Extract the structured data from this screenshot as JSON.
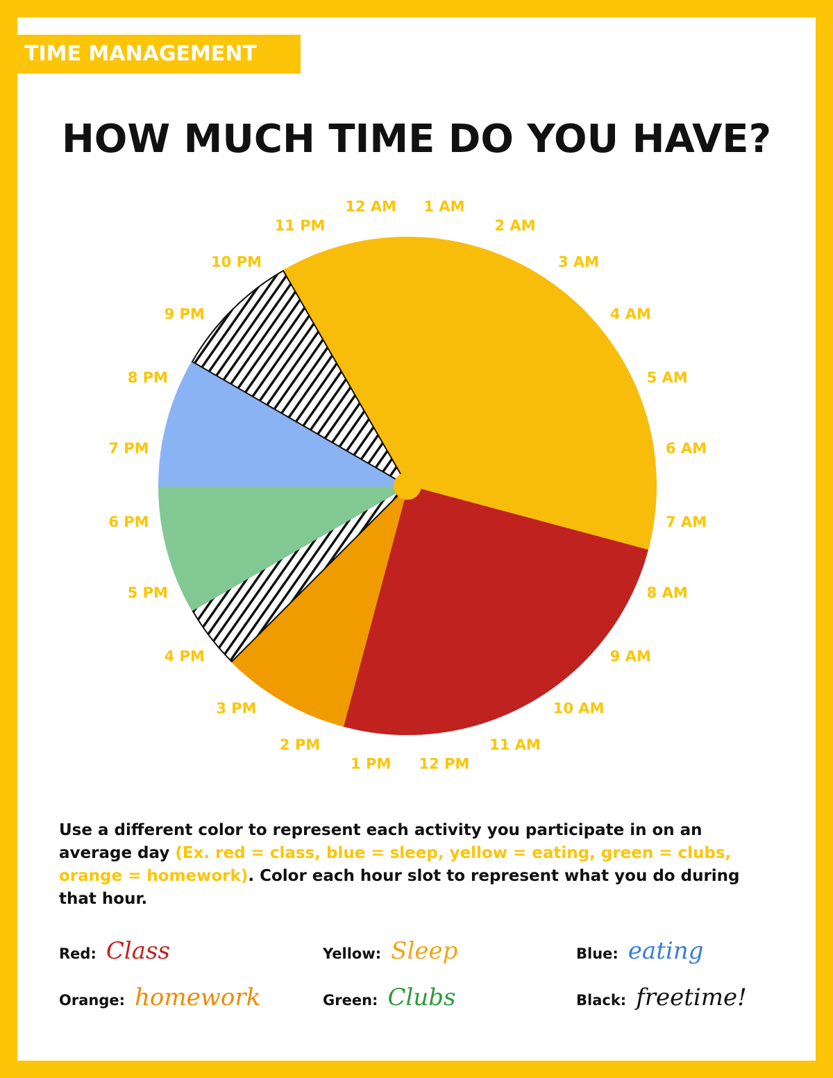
{
  "header": {
    "tag": "TIME MANAGEMENT",
    "title": "HOW MUCH TIME DO YOU HAVE?"
  },
  "chart_data": {
    "type": "pie",
    "values": [
      9,
      6,
      2,
      1,
      2,
      2,
      2
    ],
    "colors": [
      "#f8bd0a",
      "#c0221f",
      "#f09c00",
      "#111111",
      "#82c892",
      "#8ab3f4",
      "#111111"
    ],
    "hour_labels": [
      "12 AM",
      "1 AM",
      "2 AM",
      "3 AM",
      "4 AM",
      "5 AM",
      "6 AM",
      "7 AM",
      "8 AM",
      "9 AM",
      "10 AM",
      "11 AM",
      "12 PM",
      "1 PM",
      "2 PM",
      "3 PM",
      "4 PM",
      "5 PM",
      "6 PM",
      "7 PM",
      "8 PM",
      "9 PM",
      "10 PM",
      "11 PM"
    ]
  },
  "instructions": {
    "part1": "Use a different color to represent each activity you participate in on an average day ",
    "part2": "(Ex. red = class, blue = sleep, yellow = eating, green = clubs, orange = homework)",
    "part3": ". Color each hour slot to represent what you do during that hour."
  },
  "legend": [
    {
      "label": "Red:",
      "value": "Class",
      "color": "#c0221f"
    },
    {
      "label": "Yellow:",
      "value": "Sleep",
      "color": "#f3a419"
    },
    {
      "label": "Blue:",
      "value": "eating",
      "color": "#3a7be0"
    },
    {
      "label": "Orange:",
      "value": "homework",
      "color": "#f08a00"
    },
    {
      "label": "Green:",
      "value": "Clubs",
      "color": "#2e9a3a"
    },
    {
      "label": "Black:",
      "value": "freetime!",
      "color": "#111111"
    }
  ]
}
